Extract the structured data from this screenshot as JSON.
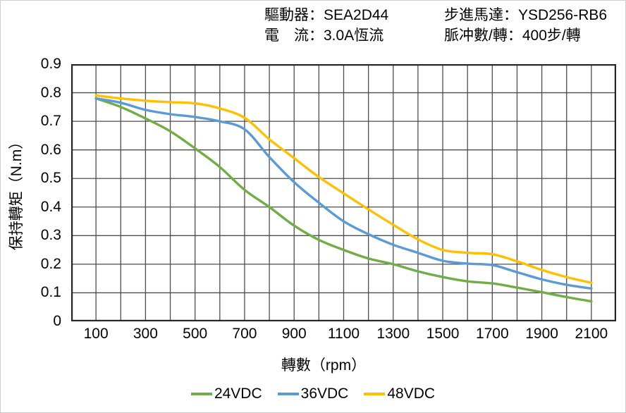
{
  "header": {
    "left": [
      {
        "label": "驅動器：",
        "value": "SEA2D44"
      },
      {
        "label": "電　流：",
        "value": "3.0A恆流"
      }
    ],
    "right": [
      {
        "label": "步進馬達：",
        "value": "YSD256-RB6"
      },
      {
        "label": "脈冲數/轉：",
        "value": "400步/轉"
      }
    ]
  },
  "colors": {
    "background": "#ffffff",
    "frame_border": "#cfcfcf",
    "grid": "#4d4d4d",
    "plot_border": "#262626",
    "text": "#000000"
  },
  "chart_data": {
    "type": "line",
    "title": "",
    "xlabel": "轉數（rpm）",
    "ylabel": "保持轉矩（N.m）",
    "xlim": [
      0,
      2200
    ],
    "ylim": [
      0,
      0.9
    ],
    "x_grid_step": 100,
    "y_grid_step": 0.1,
    "grid": true,
    "legend_position": "bottom",
    "x_ticks": [
      100,
      300,
      500,
      700,
      900,
      1100,
      1300,
      1500,
      1700,
      1900,
      2100
    ],
    "x_tick_labels": [
      "100",
      "300",
      "500",
      "700",
      "900",
      "1100",
      "1300",
      "1500",
      "1700",
      "1900",
      "2100"
    ],
    "y_ticks": [
      0,
      0.1,
      0.2,
      0.3,
      0.4,
      0.5,
      0.6,
      0.7,
      0.8,
      0.9
    ],
    "y_tick_labels": [
      "0",
      "0.1",
      "0.2",
      "0.3",
      "0.4",
      "0.5",
      "0.6",
      "0.7",
      "0.8",
      "0.9"
    ],
    "x": [
      100,
      200,
      300,
      400,
      500,
      600,
      700,
      800,
      900,
      1000,
      1100,
      1200,
      1300,
      1400,
      1500,
      1600,
      1700,
      1800,
      1900,
      2000,
      2100
    ],
    "series": [
      {
        "name": "24VDC",
        "color": "#70AD47",
        "values": [
          0.78,
          0.75,
          0.71,
          0.665,
          0.605,
          0.54,
          0.46,
          0.4,
          0.335,
          0.285,
          0.25,
          0.22,
          0.2,
          0.175,
          0.155,
          0.14,
          0.133,
          0.118,
          0.102,
          0.085,
          0.07
        ]
      },
      {
        "name": "36VDC",
        "color": "#5B9BD5",
        "values": [
          0.78,
          0.765,
          0.74,
          0.725,
          0.715,
          0.7,
          0.672,
          0.575,
          0.487,
          0.415,
          0.35,
          0.305,
          0.268,
          0.24,
          0.212,
          0.202,
          0.197,
          0.172,
          0.147,
          0.128,
          0.115
        ]
      },
      {
        "name": "48VDC",
        "color": "#FFC000",
        "values": [
          0.79,
          0.78,
          0.772,
          0.767,
          0.763,
          0.745,
          0.712,
          0.637,
          0.571,
          0.505,
          0.448,
          0.392,
          0.338,
          0.287,
          0.25,
          0.24,
          0.235,
          0.21,
          0.18,
          0.155,
          0.135
        ]
      }
    ]
  }
}
